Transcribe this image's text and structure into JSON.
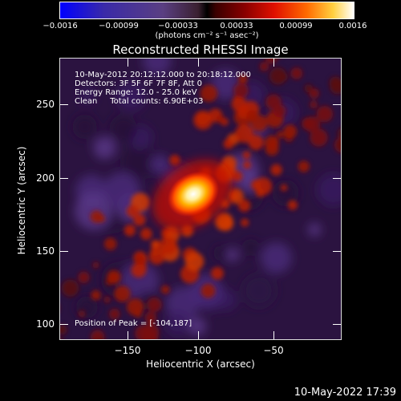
{
  "colorbar": {
    "ticks": [
      "−0.0016",
      "−0.00099",
      "−0.00033",
      "0.00033",
      "0.00099",
      "0.0016"
    ],
    "units": "(photons cm⁻² s⁻¹ asec⁻²)"
  },
  "title": "Reconstructed RHESSI Image",
  "info": {
    "time_range": "10-May-2012 20:12:12.000 to 20:18:12.000",
    "detectors": "Detectors: 3F 5F 6F 7F 8F, Att 0",
    "energy": "Energy Range: 12.0 - 25.0 keV",
    "clean": "Clean     Total counts: 6.90E+03",
    "peak": "Position of Peak = [-104,187]"
  },
  "axes": {
    "xlabel": "Heliocentric X (arcsec)",
    "ylabel": "Heliocentric Y (arcsec)",
    "xticks": [
      "−150",
      "−100",
      "−50"
    ],
    "yticks": [
      "250",
      "200",
      "150",
      "100"
    ],
    "xlim": [
      -195,
      -5
    ],
    "ylim": [
      90,
      280
    ]
  },
  "image": {
    "peak_position": [
      -104,
      187
    ],
    "colormap": [
      "#0000ff",
      "#ffffff"
    ]
  },
  "timestamp": "10-May-2022 17:39"
}
